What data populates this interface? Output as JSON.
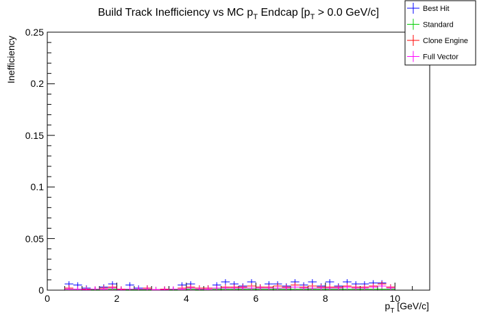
{
  "chart_data": {
    "type": "scatter",
    "title": {
      "pre": "Build Track Inefficiency vs MC p",
      "sub1": "T",
      "mid": " Endcap [p",
      "sub2": "T",
      "post": " > 0.0 GeV/c]"
    },
    "xlabel": {
      "main": "p",
      "sub": "T",
      "unit": " [GeV/c]"
    },
    "ylabel": "Inefficiency",
    "xlim": [
      0,
      11
    ],
    "ylim": [
      0,
      0.25
    ],
    "x_ticks": [
      "0",
      "2",
      "4",
      "6",
      "8",
      "10"
    ],
    "y_ticks": [
      "0",
      "0.05",
      "0.1",
      "0.15",
      "0.2",
      "0.25"
    ],
    "grid": false,
    "legend_position": "top-right",
    "x": [
      0.625,
      0.875,
      1.125,
      1.375,
      1.625,
      1.875,
      2.125,
      2.375,
      2.625,
      2.875,
      3.125,
      3.375,
      3.625,
      3.875,
      4.125,
      4.375,
      4.625,
      4.875,
      5.125,
      5.375,
      5.625,
      5.875,
      6.125,
      6.375,
      6.625,
      6.875,
      7.125,
      7.375,
      7.625,
      7.875,
      8.125,
      8.375,
      8.625,
      8.875,
      9.125,
      9.375,
      9.625,
      9.875
    ],
    "series": [
      {
        "name": "Best Hit",
        "color": "#0000ff",
        "values": [
          0.006,
          0.005,
          0.002,
          0.001,
          0.003,
          0.006,
          0.001,
          0.005,
          0.002,
          0.002,
          0.0005,
          0.001,
          0.001,
          0.005,
          0.006,
          0.002,
          0.002,
          0.005,
          0.008,
          0.006,
          0.004,
          0.008,
          0.003,
          0.006,
          0.006,
          0.004,
          0.008,
          0.005,
          0.008,
          0.004,
          0.008,
          0.004,
          0.008,
          0.006,
          0.006,
          0.007,
          0.007,
          0.003
        ]
      },
      {
        "name": "Standard",
        "color": "#00cc00",
        "values": [
          0.001,
          0.001,
          0.0005,
          0.0005,
          0.001,
          0.001,
          0.0005,
          0.0005,
          0.0005,
          0.0005,
          0.0003,
          0.0005,
          0.0005,
          0.001,
          0.001,
          0.0005,
          0.001,
          0.001,
          0.001,
          0.001,
          0.001,
          0.001,
          0.001,
          0.001,
          0.001,
          0.001,
          0.001,
          0.001,
          0.001,
          0.001,
          0.001,
          0.001,
          0.001,
          0.001,
          0.001,
          0.001,
          0.001,
          0.001
        ]
      },
      {
        "name": "Clone Engine",
        "color": "#ff0000",
        "values": [
          0.002,
          0.001,
          0.001,
          0.001,
          0.002,
          0.003,
          0.001,
          0.001,
          0.001,
          0.002,
          0.0005,
          0.001,
          0.001,
          0.002,
          0.003,
          0.002,
          0.002,
          0.002,
          0.003,
          0.003,
          0.003,
          0.004,
          0.003,
          0.003,
          0.004,
          0.003,
          0.005,
          0.003,
          0.004,
          0.003,
          0.003,
          0.003,
          0.004,
          0.003,
          0.003,
          0.004,
          0.006,
          0.003
        ]
      },
      {
        "name": "Full Vector",
        "color": "#ff00ff",
        "values": [
          0.001,
          0.001,
          0.0005,
          0.001,
          0.001,
          0.002,
          0.0005,
          0.001,
          0.001,
          0.001,
          0.0003,
          0.0005,
          0.001,
          0.001,
          0.002,
          0.001,
          0.001,
          0.002,
          0.002,
          0.002,
          0.002,
          0.002,
          0.002,
          0.002,
          0.002,
          0.002,
          0.003,
          0.002,
          0.002,
          0.002,
          0.002,
          0.002,
          0.003,
          0.002,
          0.002,
          0.003,
          0.004,
          0.002
        ]
      }
    ]
  }
}
